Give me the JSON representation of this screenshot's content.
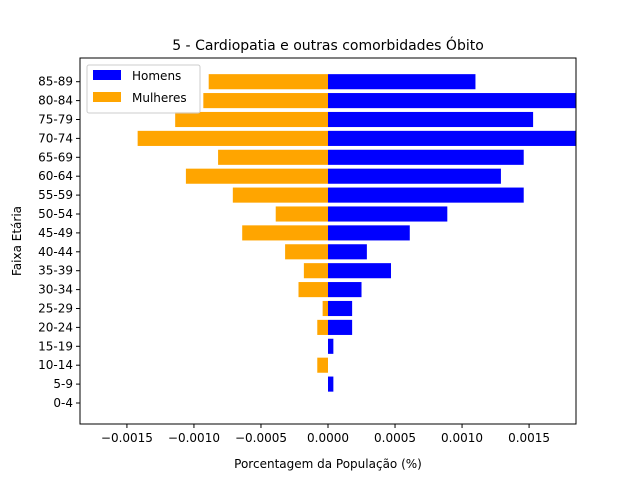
{
  "chart_data": {
    "type": "bar",
    "orientation": "horizontal",
    "title": "5 - Cardiopatia e outras comorbidades Óbito",
    "xlabel": "Porcentagem da População (%)",
    "ylabel": "Faixa Etária",
    "categories": [
      "0-4",
      "5-9",
      "10-14",
      "15-19",
      "20-24",
      "25-29",
      "30-34",
      "35-39",
      "40-44",
      "45-49",
      "50-54",
      "55-59",
      "60-64",
      "65-69",
      "70-74",
      "75-79",
      "80-84",
      "85-89"
    ],
    "series": [
      {
        "name": "Homens",
        "color": "#0000ff",
        "values": [
          0,
          4e-05,
          0,
          4e-05,
          0.00018,
          0.00018,
          0.00025,
          0.00047,
          0.00029,
          0.00061,
          0.00089,
          0.00146,
          0.00129,
          0.00146,
          0.00185,
          0.00153,
          0.00185,
          0.0011
        ]
      },
      {
        "name": "Mulheres",
        "color": "#ffa500",
        "values": [
          0,
          0,
          -8e-05,
          0,
          -8e-05,
          -4e-05,
          -0.00022,
          -0.00018,
          -0.00032,
          -0.00064,
          -0.00039,
          -0.00071,
          -0.00106,
          -0.00082,
          -0.00142,
          -0.00114,
          -0.00093,
          -0.00089
        ]
      }
    ],
    "xlim": [
      -0.00185,
      0.00185
    ],
    "xticks": [
      -0.0015,
      -0.001,
      -0.0005,
      0,
      0.0005,
      0.001,
      0.0015
    ],
    "xtick_labels": [
      "−0.0015",
      "−0.0010",
      "−0.0005",
      "0.0000",
      "0.0005",
      "0.0010",
      "0.0015"
    ],
    "grid": false,
    "legend_position": "top-left"
  }
}
